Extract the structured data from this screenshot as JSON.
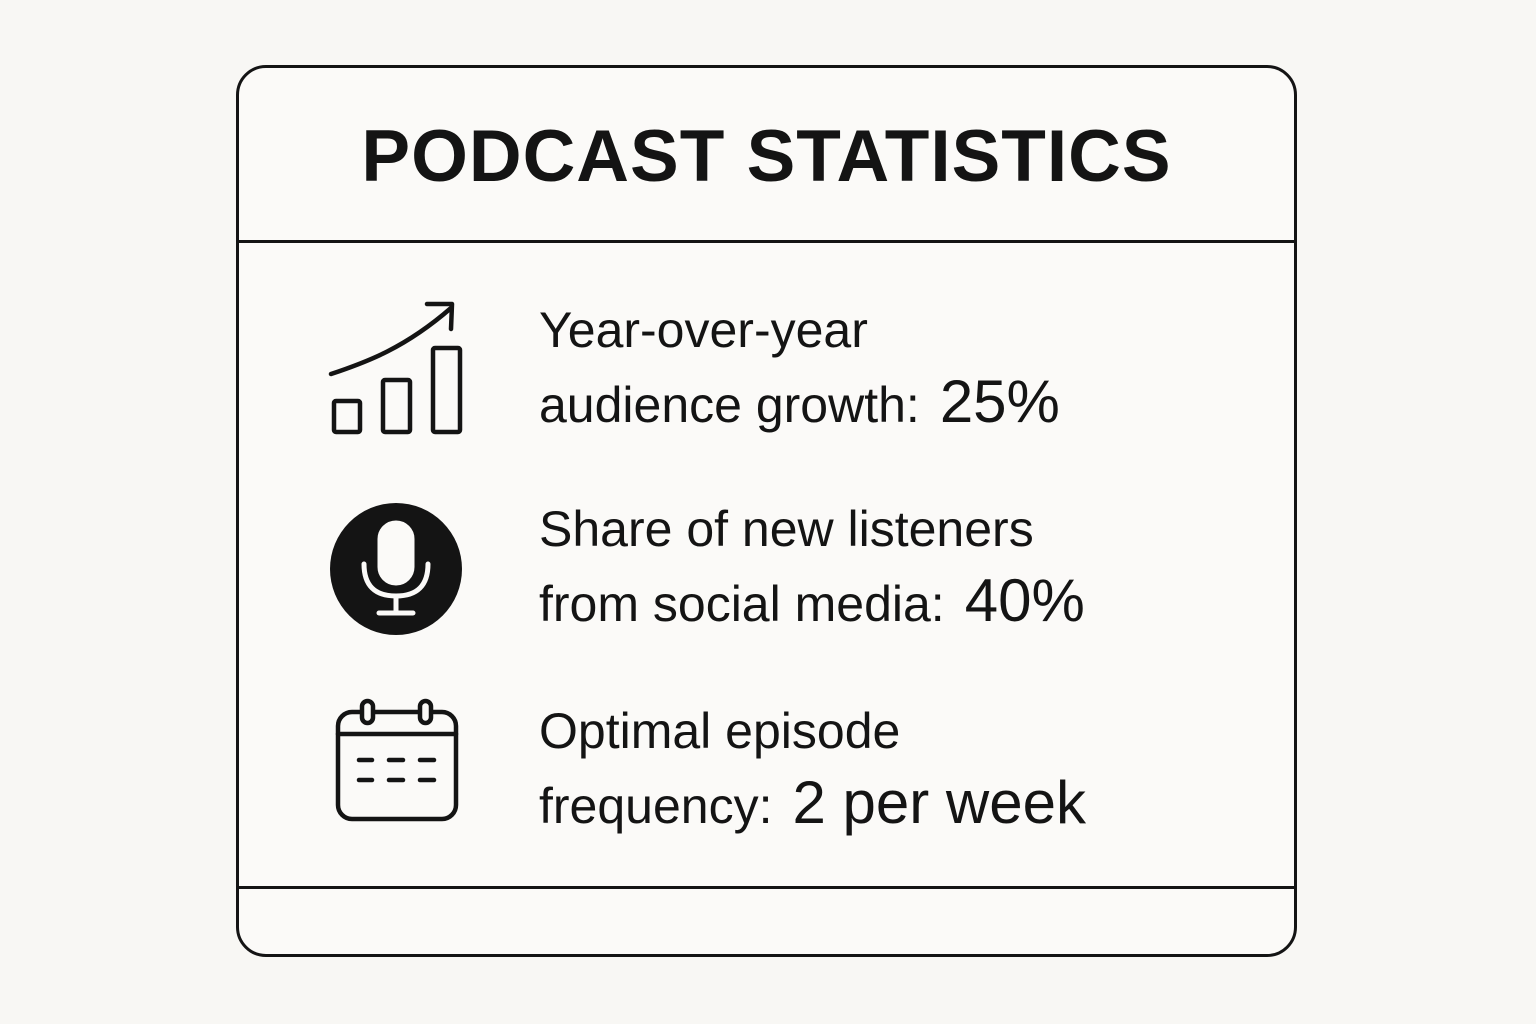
{
  "title": "PODCAST STATISTICS",
  "stats": [
    {
      "icon": "bar-chart-growth-icon",
      "label_line1": "Year-over-year",
      "label_line2": "audience growth:",
      "value": "25%"
    },
    {
      "icon": "microphone-icon",
      "label_line1": "Share of new listeners",
      "label_line2": "from social media:",
      "value": "40%"
    },
    {
      "icon": "calendar-icon",
      "label_line1": "Optimal episode",
      "label_line2": "frequency:",
      "value": "2 per week"
    }
  ],
  "colors": {
    "ink": "#141414",
    "background": "#f8f7f4"
  }
}
